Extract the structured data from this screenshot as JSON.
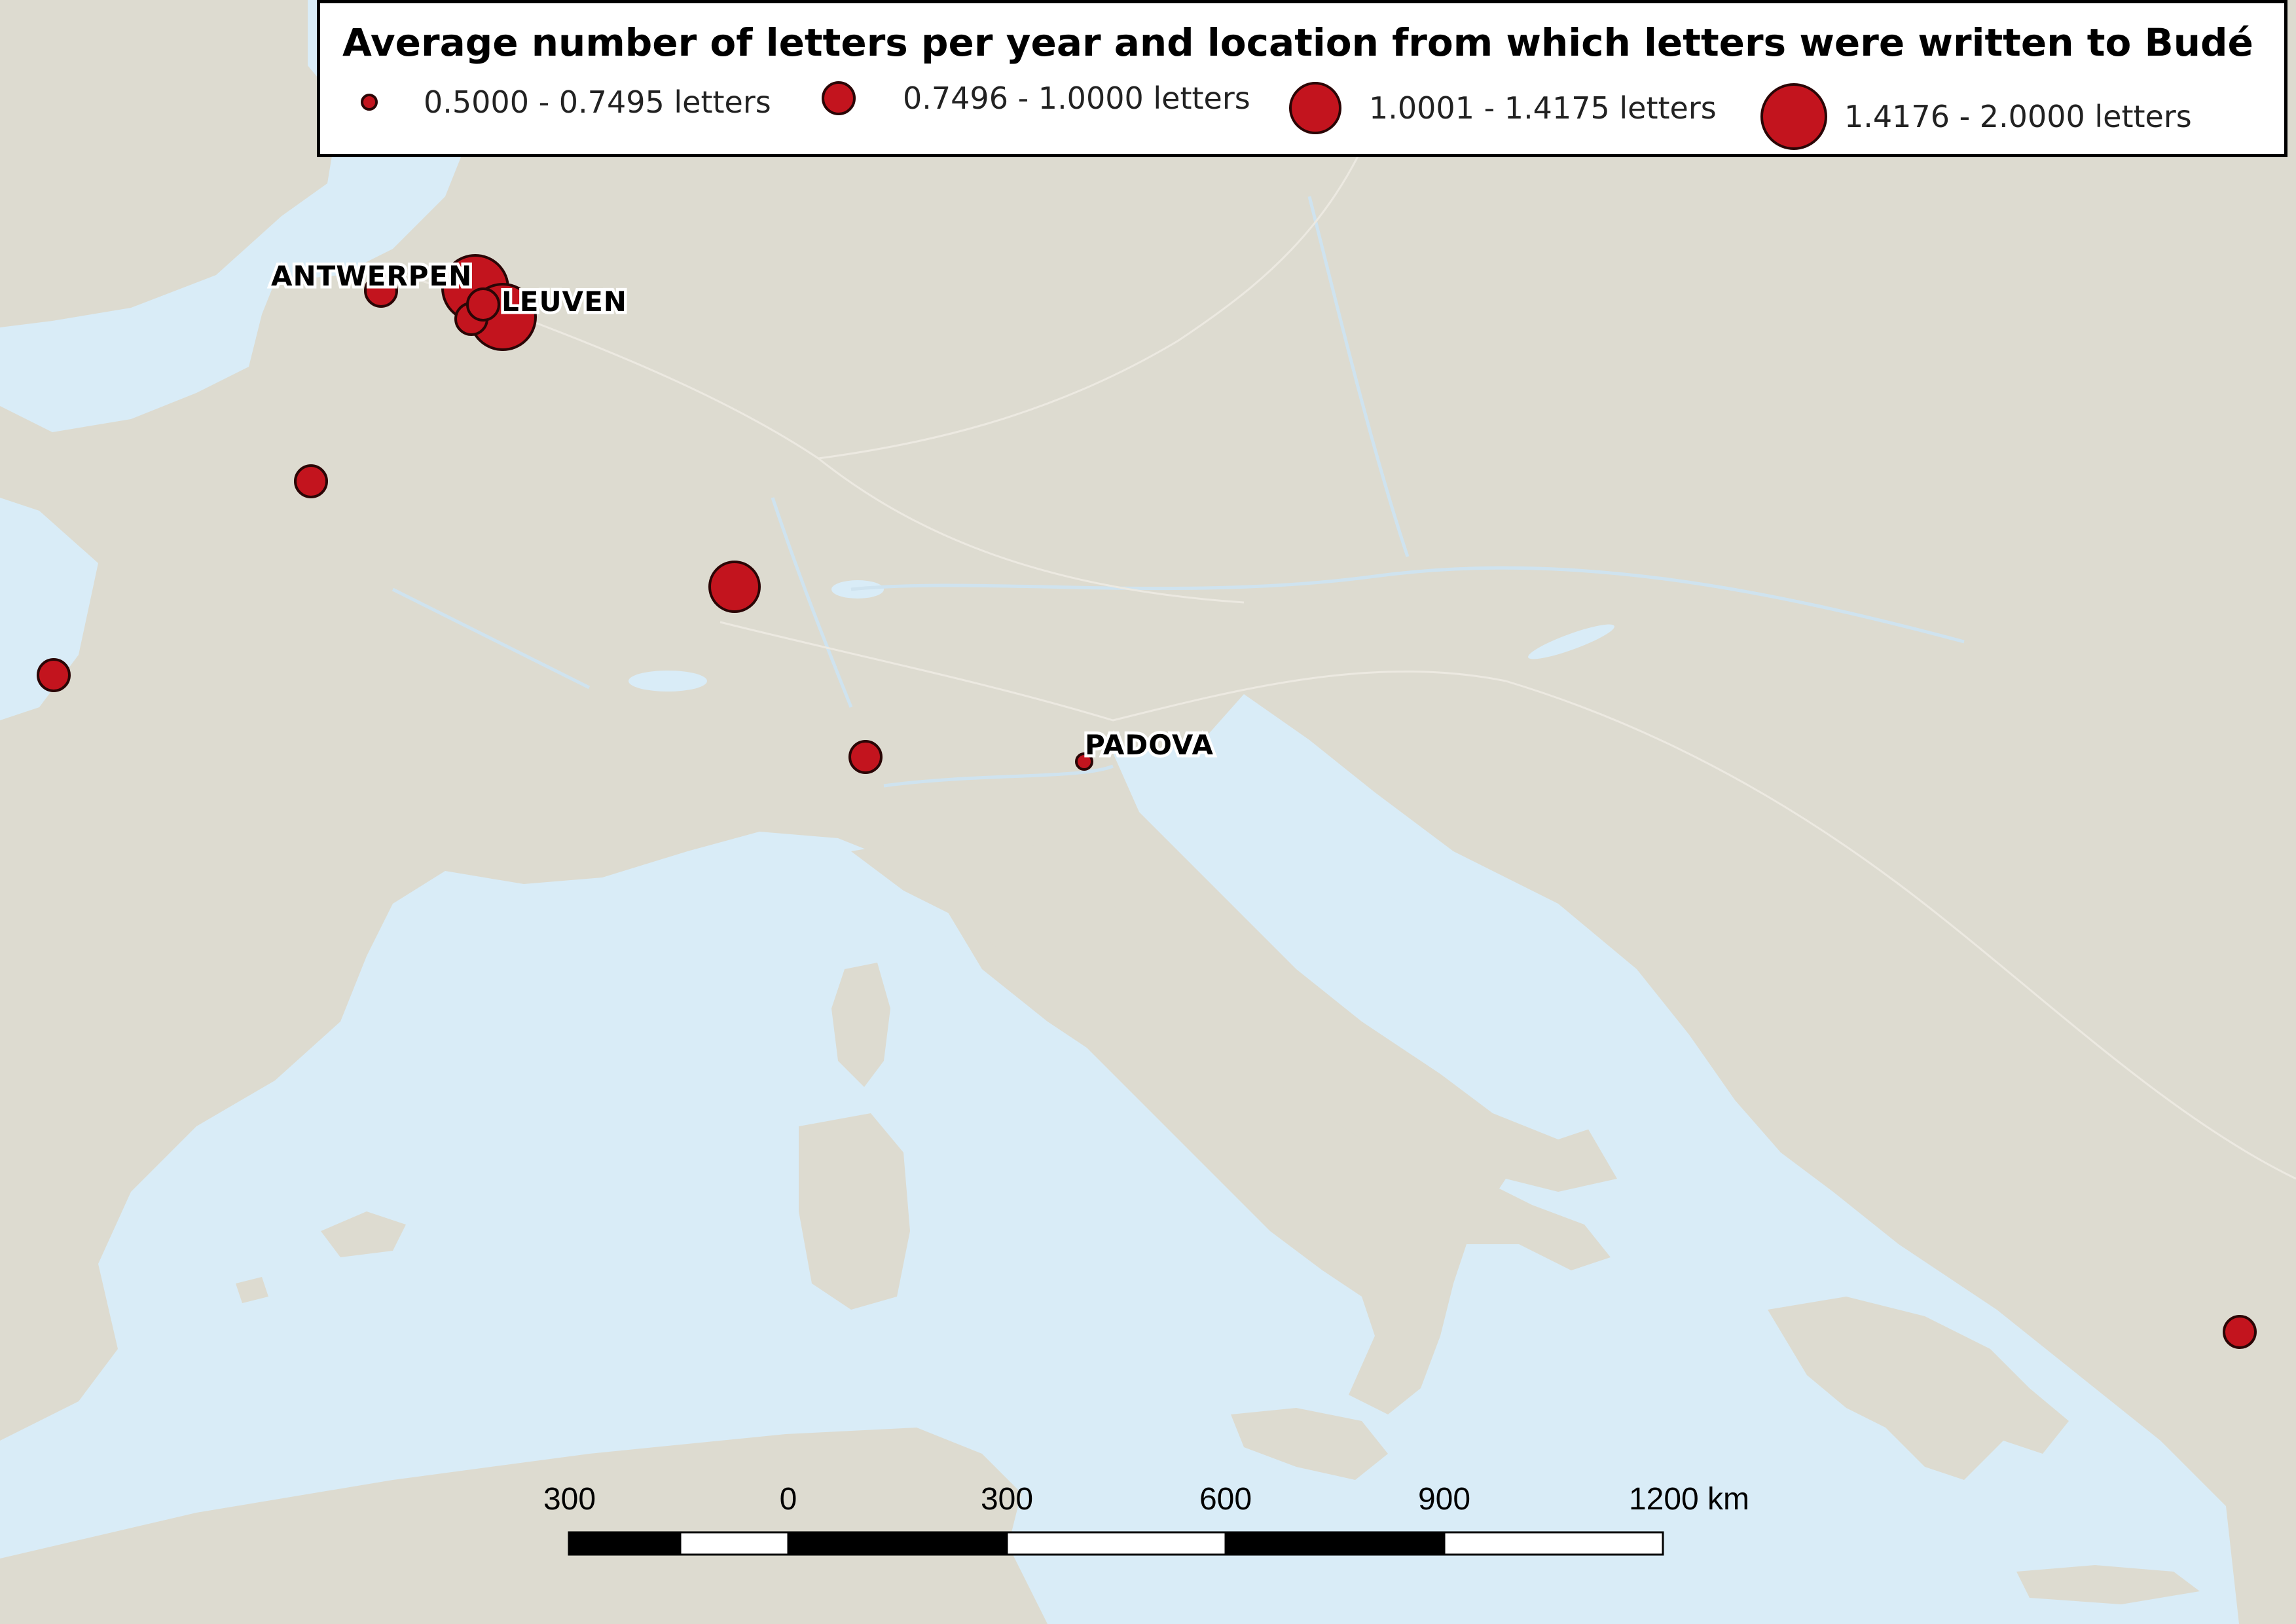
{
  "legend": {
    "title": "Average number of letters per year and location from which letters were written to Budé",
    "classes": [
      {
        "label": "0.5000 - 0.7495 letters"
      },
      {
        "label": "0.7496 - 1.0000 letters"
      },
      {
        "label": "1.0001 - 1.4175 letters"
      },
      {
        "label": "1.4176 - 2.0000 letters"
      }
    ]
  },
  "places": [
    {
      "name": "ANTWERPEN"
    },
    {
      "name": "LEUVEN"
    },
    {
      "name": "PADOVA"
    }
  ],
  "scale_bar": {
    "labels": [
      "300",
      "0",
      "300",
      "600",
      "900",
      "1200 km"
    ]
  },
  "colors": {
    "symbol_fill": "#c3141e",
    "symbol_stroke": "#2a0606",
    "land": "#dddbd0",
    "sea": "#d9ecf7"
  }
}
